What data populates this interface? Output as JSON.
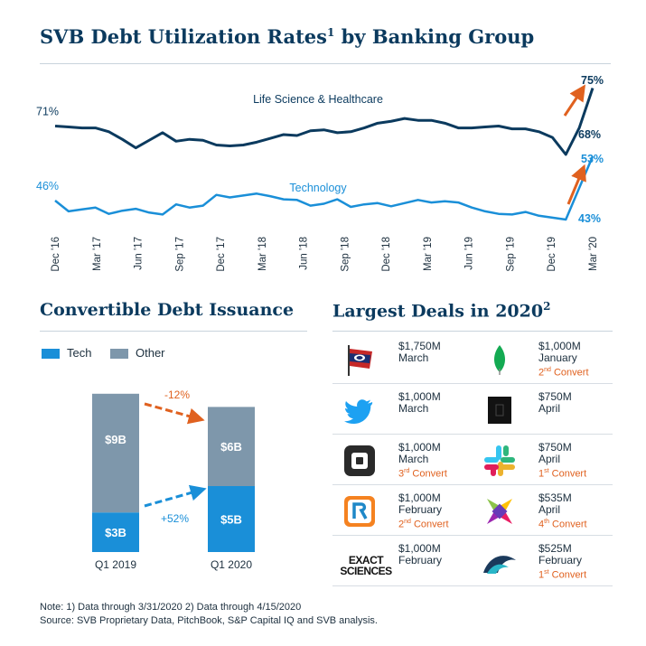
{
  "titles": {
    "main": "SVB Debt Utilization Rates",
    "main_sup": "1",
    "main_suffix": " by Banking Group",
    "convertible": "Convertible Debt Issuance",
    "deals": "Largest Deals in 2020",
    "deals_sup": "2"
  },
  "colors": {
    "navy": "#0b3a5e",
    "blue": "#1a8fd8",
    "gray": "#7e97ab",
    "orange": "#e0611f"
  },
  "chart_data": [
    {
      "type": "line",
      "title": "SVB Debt Utilization Rates by Banking Group",
      "x_ticks": [
        "Dec '16",
        "Mar '17",
        "Jun '17",
        "Sep '17",
        "Dec '17",
        "Mar '18",
        "Jun '18",
        "Sep '18",
        "Dec '18",
        "Mar '19",
        "Jun '19",
        "Sep '19",
        "Dec '19",
        "Mar '20"
      ],
      "ylim": [
        40,
        76
      ],
      "series": [
        {
          "name": "Life Science & Healthcare",
          "start_label": "71%",
          "end_labels": [
            "68%",
            "75%"
          ],
          "values": [
            71.0,
            70.9,
            70.8,
            70.8,
            70.4,
            69.6,
            68.7,
            69.5,
            70.3,
            69.4,
            69.6,
            69.5,
            69.0,
            68.9,
            69.0,
            69.3,
            69.7,
            70.1,
            70.0,
            70.5,
            70.6,
            70.3,
            70.4,
            70.8,
            71.3,
            71.5,
            71.8,
            71.6,
            71.6,
            71.3,
            70.8,
            70.8,
            70.9,
            71.0,
            70.7,
            70.7,
            70.4,
            69.8,
            68.0,
            70.8,
            75.0
          ]
        },
        {
          "name": "Technology",
          "start_label": "46%",
          "end_labels": [
            "43%",
            "53%"
          ],
          "values": [
            46.0,
            44.3,
            44.6,
            44.9,
            43.9,
            44.4,
            44.7,
            44.1,
            43.8,
            45.4,
            44.9,
            45.2,
            46.9,
            46.5,
            46.8,
            47.1,
            46.7,
            46.2,
            46.1,
            45.2,
            45.5,
            46.2,
            45.0,
            45.4,
            45.6,
            45.1,
            45.6,
            46.1,
            45.7,
            45.9,
            45.7,
            44.9,
            44.3,
            43.9,
            43.8,
            44.2,
            43.6,
            43.3,
            43.0,
            48.0,
            53.0
          ]
        }
      ]
    },
    {
      "type": "bar",
      "title": "Convertible Debt Issuance",
      "stacked": true,
      "categories": [
        "Q1 2019",
        "Q1 2020"
      ],
      "series": [
        {
          "name": "Tech",
          "values": [
            3,
            5
          ],
          "labels": [
            "$3B",
            "$5B"
          ]
        },
        {
          "name": "Other",
          "values": [
            9,
            6
          ],
          "labels": [
            "$9B",
            "$6B"
          ]
        }
      ],
      "annotations": [
        "-12%",
        "+52%"
      ]
    }
  ],
  "deals": [
    [
      {
        "amount": "$1,750M",
        "month": "March",
        "convert": "",
        "convert_sup": "",
        "convert_suffix": "",
        "logo": "carnival-logo"
      },
      {
        "amount": "$1,000M",
        "month": "January",
        "convert": "2",
        "convert_sup": "nd",
        "convert_suffix": " Convert",
        "logo": "mongodb-leaf-logo"
      }
    ],
    [
      {
        "amount": "$1,000M",
        "month": "March",
        "convert": "",
        "convert_sup": "",
        "convert_suffix": "",
        "logo": "twitter-bird-logo"
      },
      {
        "amount": "$750M",
        "month": "April",
        "convert": "",
        "convert_sup": "",
        "convert_suffix": "",
        "logo": "dark-square-logo"
      }
    ],
    [
      {
        "amount": "$1,000M",
        "month": "March",
        "convert": "3",
        "convert_sup": "rd",
        "convert_suffix": " Convert",
        "logo": "square-logo"
      },
      {
        "amount": "$750M",
        "month": "April",
        "convert": "1",
        "convert_sup": "st",
        "convert_suffix": " Convert",
        "logo": "slack-logo"
      }
    ],
    [
      {
        "amount": "$1,000M",
        "month": "February",
        "convert": "2",
        "convert_sup": "nd",
        "convert_suffix": " Convert",
        "logo": "r-logo"
      },
      {
        "amount": "$535M",
        "month": "April",
        "convert": "4",
        "convert_sup": "th",
        "convert_suffix": " Convert",
        "logo": "colorful-x-logo"
      }
    ],
    [
      {
        "amount": "$1,000M",
        "month": "February",
        "convert": "",
        "convert_sup": "",
        "convert_suffix": "",
        "logo": "exact-sciences-logo",
        "logo_text": [
          "EXACT",
          "SCIENCES"
        ]
      },
      {
        "amount": "$525M",
        "month": "February",
        "convert": "1",
        "convert_sup": "st",
        "convert_suffix": " Convert",
        "logo": "wave-logo"
      }
    ]
  ],
  "notes": {
    "line1": "Note: 1) Data through 3/31/2020 2) Data through 4/15/2020",
    "line2": "Source: SVB Proprietary Data, PitchBook, S&P Capital IQ and SVB analysis."
  }
}
